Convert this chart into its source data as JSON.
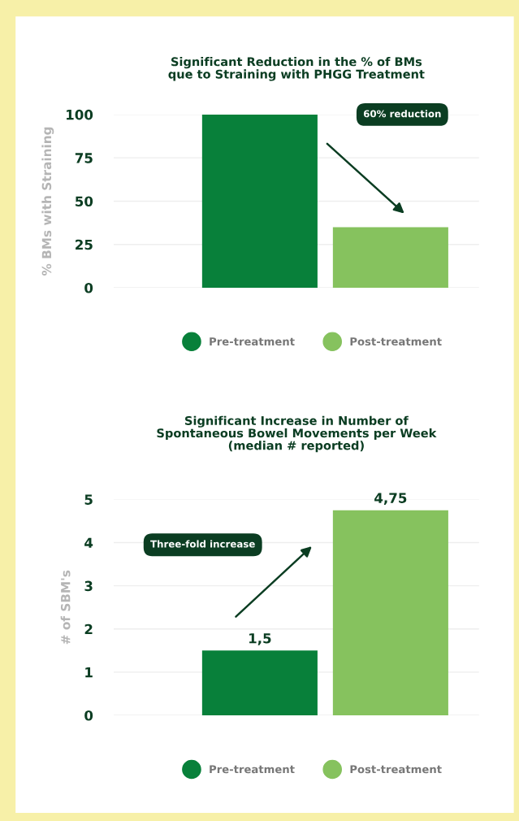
{
  "chart_data": [
    {
      "type": "bar",
      "title": "Significant Reduction in the % of BMs\nque to Straining with PHGG Treatment",
      "ylabel": "% BMs with Straining",
      "categories": [
        null
      ],
      "series": [
        {
          "name": "Pre-treatment",
          "color": "#08803a",
          "values": [
            100
          ]
        },
        {
          "name": "Post-treatment",
          "color": "#86c25e",
          "values": [
            35
          ]
        }
      ],
      "ylim": [
        0,
        100
      ],
      "yticks": [
        0,
        25,
        50,
        75,
        100
      ],
      "grid": "y",
      "legend": "bottom",
      "tick_labels": "y",
      "annotations": [
        "60% reduction"
      ]
    },
    {
      "type": "bar",
      "title": "Significant Increase in Number of\nSpontaneous Bowel Movements per Week\n(median # reported)",
      "ylabel": "# of SBM's",
      "categories": [
        null
      ],
      "series": [
        {
          "name": "Pre-treatment",
          "color": "#08803a",
          "values": [
            1.5
          ],
          "value_labels": [
            "1,5"
          ]
        },
        {
          "name": "Post-treatment",
          "color": "#86c25e",
          "values": [
            4.75
          ],
          "value_labels": [
            "4,75"
          ]
        }
      ],
      "ylim": [
        0,
        5
      ],
      "yticks": [
        0,
        1,
        2,
        3,
        4,
        5
      ],
      "grid": "y",
      "legend": "bottom",
      "tick_labels": "y",
      "annotations": [
        "Three-fold increase"
      ]
    }
  ]
}
